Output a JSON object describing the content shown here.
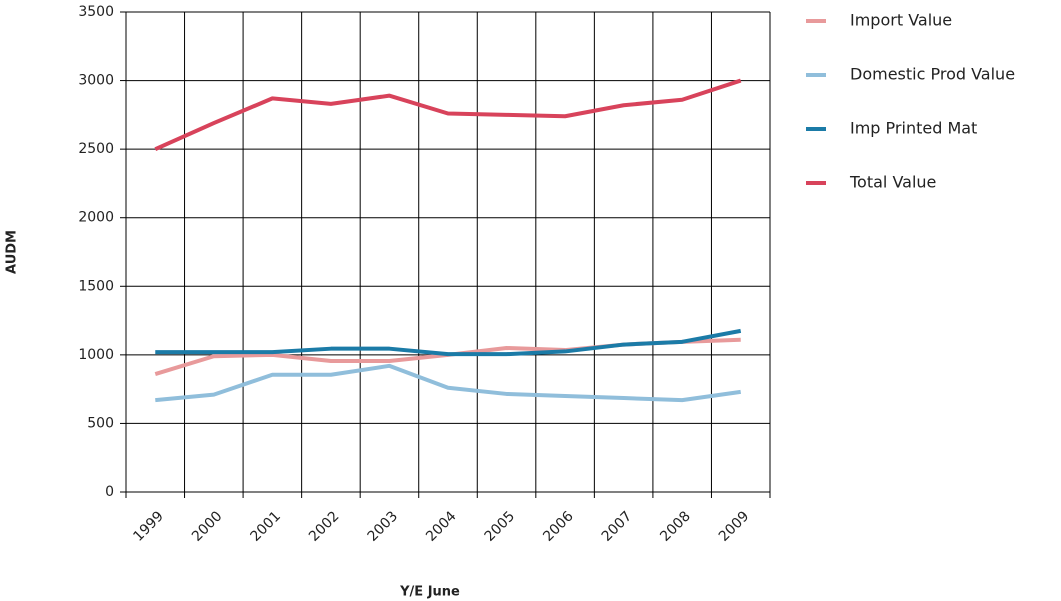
{
  "chart_data": {
    "type": "line",
    "categories": [
      "1999",
      "2000",
      "2001",
      "2002",
      "2003",
      "2004",
      "2005",
      "2006",
      "2007",
      "2008",
      "2009"
    ],
    "series": [
      {
        "name": "Import Value",
        "color": "#e89a9b",
        "values": [
          860,
          990,
          1000,
          955,
          955,
          1000,
          1050,
          1035,
          1075,
          1095,
          1110
        ]
      },
      {
        "name": "Domestic Prod Value",
        "color": "#90bedb",
        "values": [
          670,
          710,
          855,
          855,
          920,
          760,
          715,
          700,
          685,
          670,
          730
        ]
      },
      {
        "name": "Imp Printed Mat",
        "color": "#1b7ba7",
        "values": [
          1020,
          1020,
          1020,
          1045,
          1045,
          1005,
          1005,
          1025,
          1075,
          1095,
          1175
        ]
      },
      {
        "name": "Total Value",
        "color": "#d8435b",
        "values": [
          2500,
          2690,
          2870,
          2830,
          2890,
          2760,
          2750,
          2740,
          2820,
          2860,
          3000
        ]
      }
    ],
    "x_label": "Y/E June",
    "y_label": "AUDM",
    "ylim": [
      0,
      3500
    ],
    "yticks": [
      0,
      500,
      1000,
      1500,
      2000,
      2500,
      3000,
      3500
    ],
    "grid": true,
    "legend": "right"
  }
}
